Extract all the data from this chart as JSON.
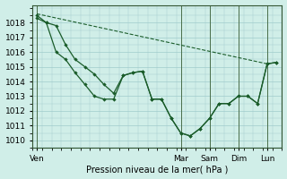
{
  "background_color": "#d0eee8",
  "grid_color": "#a0cccc",
  "line_color": "#1a5c2a",
  "xlabel": "Pression niveau de la mer( hPa )",
  "ylim": [
    1009.5,
    1019.2
  ],
  "yticks": [
    1010,
    1011,
    1012,
    1013,
    1014,
    1015,
    1016,
    1017,
    1018
  ],
  "xtick_labels": [
    "Ven",
    "Mar",
    "Sam",
    "Dim",
    "Lun"
  ],
  "xtick_positions": [
    0,
    5,
    6,
    7,
    8
  ],
  "xlim": [
    -0.15,
    8.5
  ],
  "straight_line": {
    "x": [
      0,
      8.0
    ],
    "y": [
      1018.6,
      1015.2
    ]
  },
  "line2_x": [
    0,
    0.33,
    0.67,
    1.0,
    1.33,
    1.67,
    2.0,
    2.33,
    2.67,
    3.0,
    3.33,
    3.67,
    4.0,
    4.33,
    4.67,
    5.0,
    5.33,
    5.67,
    6.0,
    6.33,
    6.67,
    7.0,
    7.33,
    7.67,
    8.0,
    8.33
  ],
  "line2_y": [
    1018.3,
    1018.0,
    1016.0,
    1015.5,
    1014.6,
    1013.8,
    1013.0,
    1012.8,
    1012.8,
    1014.4,
    1014.6,
    1014.7,
    1012.8,
    1012.8,
    1011.5,
    1010.5,
    1010.3,
    1010.8,
    1011.5,
    1012.5,
    1012.5,
    1013.0,
    1013.0,
    1012.5,
    1015.2,
    1015.3
  ],
  "line3_x": [
    0,
    0.33,
    0.67,
    1.0,
    1.33,
    1.67,
    2.0,
    2.33,
    2.67,
    3.0,
    3.33,
    3.67,
    4.0,
    4.33,
    4.67,
    5.0,
    5.33,
    5.67,
    6.0,
    6.33,
    6.67,
    7.0,
    7.33,
    7.67,
    8.0,
    8.33
  ],
  "line3_y": [
    1018.5,
    1018.0,
    1017.8,
    1016.5,
    1015.5,
    1015.0,
    1014.5,
    1013.8,
    1013.2,
    1014.4,
    1014.6,
    1014.7,
    1012.8,
    1012.8,
    1011.5,
    1010.5,
    1010.3,
    1010.8,
    1011.5,
    1012.5,
    1012.5,
    1013.0,
    1013.0,
    1012.5,
    1015.2,
    1015.3
  ]
}
